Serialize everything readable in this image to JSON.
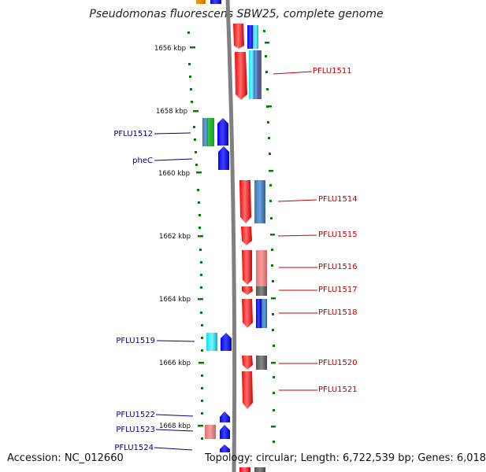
{
  "title": "Pseudomonas fluorescens SBW25, complete genome",
  "accession": "Accession: NC_012660",
  "topology": "Topology: circular; Length: 6,722,539 bp; Genes: 6,018",
  "colors": {
    "ruler": "#008000",
    "axis": "#888888",
    "blue_label": "#00008b",
    "red_label": "#c00000"
  },
  "ruler_ticks": [
    "1656 kbp",
    "1658 kbp",
    "1660 kbp",
    "1662 kbp",
    "1664 kbp",
    "1666 kbp",
    "1668 kbp"
  ],
  "genes_left": [
    "PFLU1512",
    "pheC",
    "PFLU1519",
    "PFLU1522",
    "PFLU1523",
    "PFLU1524"
  ],
  "genes_right": [
    "PFLU1511",
    "PFLU1514",
    "PFLU1515",
    "PFLU1516",
    "PFLU1517",
    "PFLU1518",
    "PFLU1520",
    "PFLU1521"
  ]
}
